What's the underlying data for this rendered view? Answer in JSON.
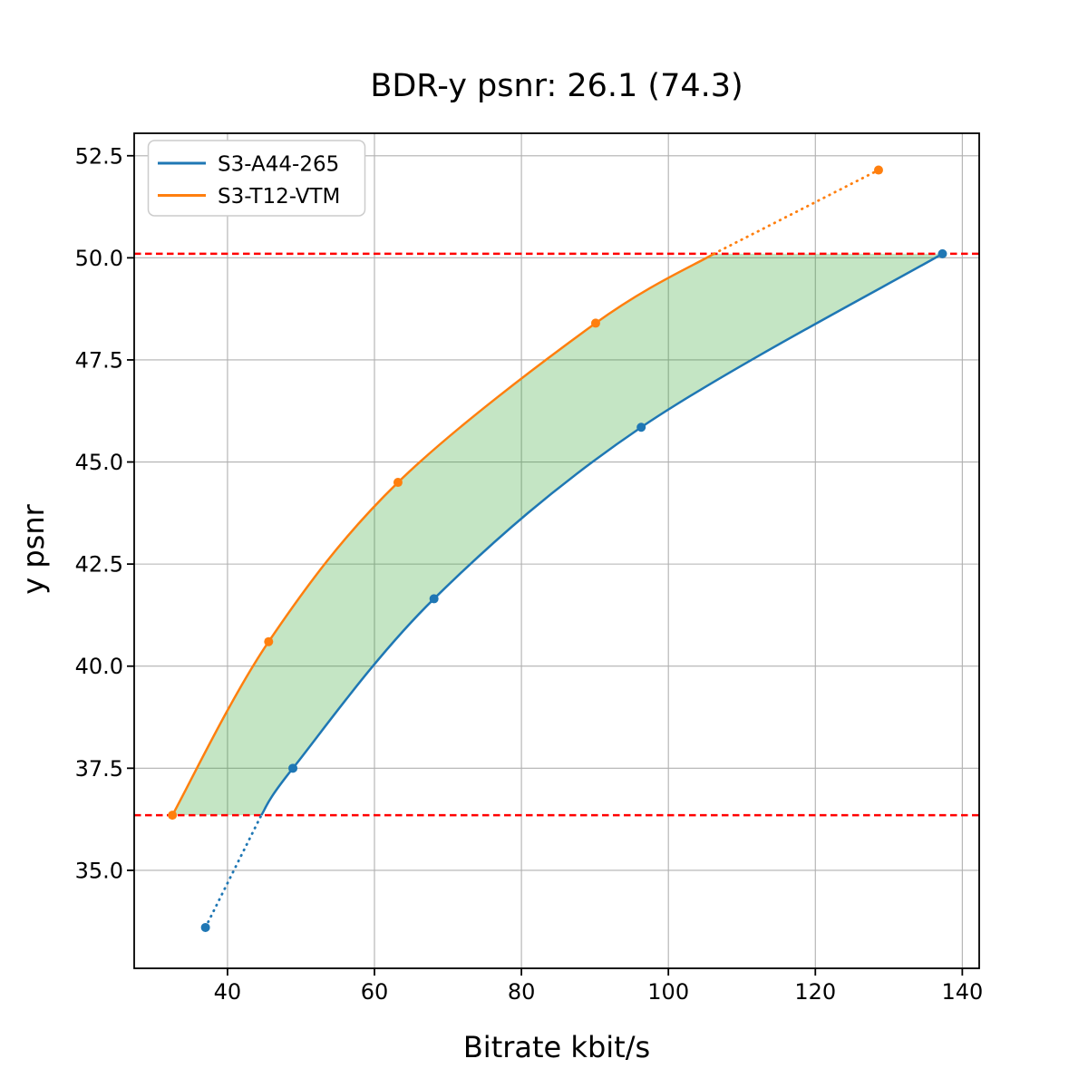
{
  "figure": {
    "background": "#ffffff"
  },
  "chart_data": {
    "type": "line",
    "title": "BDR-y psnr: 26.1 (74.3)",
    "xlabel": "Bitrate kbit/s",
    "ylabel": "y psnr",
    "xlim": [
      27.3,
      142.3
    ],
    "ylim": [
      32.6,
      53.05
    ],
    "xticks": [
      40,
      60,
      80,
      100,
      120,
      140
    ],
    "yticks": [
      35.0,
      37.5,
      40.0,
      42.5,
      45.0,
      47.5,
      50.0,
      52.5
    ],
    "grid": true,
    "grid_color": "#b0b0b0",
    "legend": {
      "position": "upper-left",
      "entries": [
        {
          "label": "S3-A44-265",
          "color": "#1f77b4"
        },
        {
          "label": "S3-T12-VTM",
          "color": "#ff7f0e"
        }
      ]
    },
    "series": [
      {
        "name": "S3-A44-265",
        "color": "#1f77b4",
        "marker": "circle",
        "points": [
          [
            37.0,
            33.6
          ],
          [
            48.9,
            37.5
          ],
          [
            68.1,
            41.65
          ],
          [
            96.3,
            45.85
          ],
          [
            137.3,
            50.1
          ]
        ],
        "dotted_below_crossing": [
          44.6,
          36.35
        ]
      },
      {
        "name": "S3-T12-VTM",
        "color": "#ff7f0e",
        "marker": "circle",
        "points": [
          [
            32.5,
            36.35
          ],
          [
            45.6,
            40.6
          ],
          [
            63.2,
            44.5
          ],
          [
            90.1,
            48.4
          ],
          [
            128.6,
            52.15
          ]
        ],
        "dotted_above_crossing": [
          106.2,
          50.1
        ]
      }
    ],
    "hlines": {
      "values": [
        50.1,
        36.35
      ],
      "color": "#ff0000",
      "style": "dashed"
    },
    "shaded_region": {
      "between": [
        "S3-T12-VTM",
        "S3-A44-265"
      ],
      "color": "#2ca02c",
      "opacity": 0.28
    }
  }
}
